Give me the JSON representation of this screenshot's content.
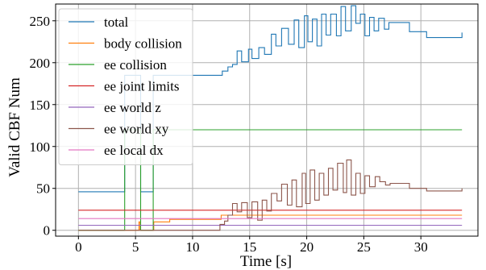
{
  "chart_data": {
    "type": "line",
    "title": "",
    "xlabel": "Time [s]",
    "ylabel": "Valid CBF Num",
    "xlim": [
      -2,
      35
    ],
    "ylim": [
      -7,
      270
    ],
    "xticks": [
      0,
      5,
      10,
      15,
      20,
      25,
      30
    ],
    "yticks": [
      0,
      50,
      100,
      150,
      200,
      250
    ],
    "grid": true,
    "legend_position": "upper-left",
    "line_style": "step",
    "series": [
      {
        "name": "total",
        "color": "#1f77b4",
        "x": [
          0,
          4,
          4.05,
          5.4,
          5.45,
          6.5,
          6.55,
          12.5,
          12.6,
          13.1,
          13.5,
          13.9,
          14.3,
          14.9,
          15.2,
          15.8,
          16.3,
          16.9,
          17.3,
          17.8,
          18.4,
          18.9,
          19.3,
          19.8,
          20.1,
          20.5,
          20.9,
          21.3,
          21.7,
          22.1,
          22.6,
          23,
          23.4,
          23.9,
          24.3,
          24.7,
          25.1,
          25.5,
          25.9,
          26.3,
          26.8,
          27.2,
          29,
          30.5,
          33.6
        ],
        "y": [
          46,
          46,
          185,
          185,
          46,
          46,
          185,
          185,
          190,
          195,
          198,
          214,
          201,
          216,
          205,
          218,
          210,
          234,
          220,
          241,
          222,
          251,
          218,
          256,
          225,
          252,
          220,
          258,
          233,
          258,
          232,
          267,
          238,
          268,
          247,
          258,
          232,
          254,
          238,
          253,
          240,
          248,
          237,
          230,
          236
        ]
      },
      {
        "name": "body collision",
        "color": "#ff7f0e",
        "x": [
          0,
          4,
          5.3,
          5.4,
          6.6,
          8,
          12.5,
          33.6
        ],
        "y": [
          0,
          0,
          10,
          0,
          10,
          13,
          18,
          18
        ]
      },
      {
        "name": "ee collision",
        "color": "#2ca02c",
        "x": [
          0,
          4,
          4.05,
          5.4,
          5.45,
          6.5,
          6.55,
          33.6
        ],
        "y": [
          0,
          0,
          120,
          120,
          0,
          0,
          120,
          120
        ]
      },
      {
        "name": "ee joint limits",
        "color": "#d62728",
        "x": [
          0,
          33.6
        ],
        "y": [
          24,
          24
        ]
      },
      {
        "name": "ee world z",
        "color": "#9467bd",
        "x": [
          0,
          33.6
        ],
        "y": [
          6,
          6
        ]
      },
      {
        "name": "ee world xy",
        "color": "#8c564b",
        "x": [
          0,
          12.4,
          12.8,
          13.1,
          13.5,
          13.9,
          14.3,
          14.8,
          15.2,
          15.7,
          16.1,
          16.5,
          16.9,
          17.4,
          17.8,
          18.3,
          18.7,
          19.1,
          19.6,
          19.9,
          20.3,
          20.7,
          21.1,
          21.5,
          21.9,
          22.3,
          22.7,
          23.2,
          23.5,
          23.9,
          24.3,
          24.7,
          25.1,
          25.5,
          26,
          26.4,
          26.9,
          27.3,
          29,
          30.5,
          33.6
        ],
        "y": [
          0,
          7,
          11,
          18,
          32,
          22,
          33,
          15,
          34,
          12,
          36,
          23,
          44,
          35,
          55,
          30,
          60,
          28,
          68,
          32,
          72,
          36,
          68,
          42,
          74,
          48,
          80,
          45,
          84,
          42,
          68,
          44,
          65,
          52,
          64,
          58,
          54,
          56,
          50,
          47,
          50
        ]
      },
      {
        "name": "ee local dx",
        "color": "#e377c2",
        "x": [
          0,
          33.6
        ],
        "y": [
          14,
          14
        ]
      }
    ]
  }
}
